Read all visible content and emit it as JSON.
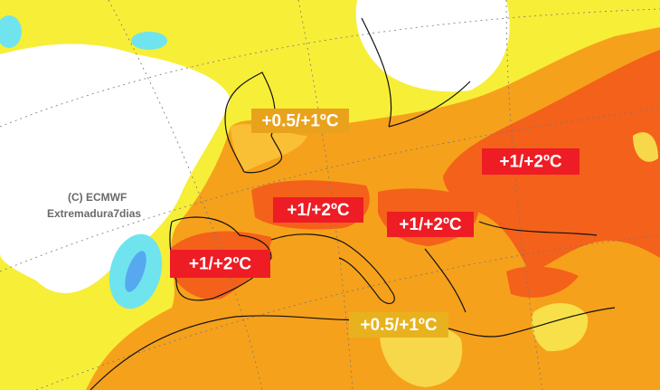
{
  "labels": [
    {
      "text": "+0.5/+1ºC"
    },
    {
      "text": "+1/+2ºC"
    },
    {
      "text": "+1/+2ºC"
    },
    {
      "text": "+1/+2ºC"
    },
    {
      "text": "+1/+2ºC"
    },
    {
      "text": "+0.5/+1ºC"
    }
  ],
  "watermark": {
    "line1": "(C) ECMWF",
    "line2": "Extremadura7dias"
  }
}
